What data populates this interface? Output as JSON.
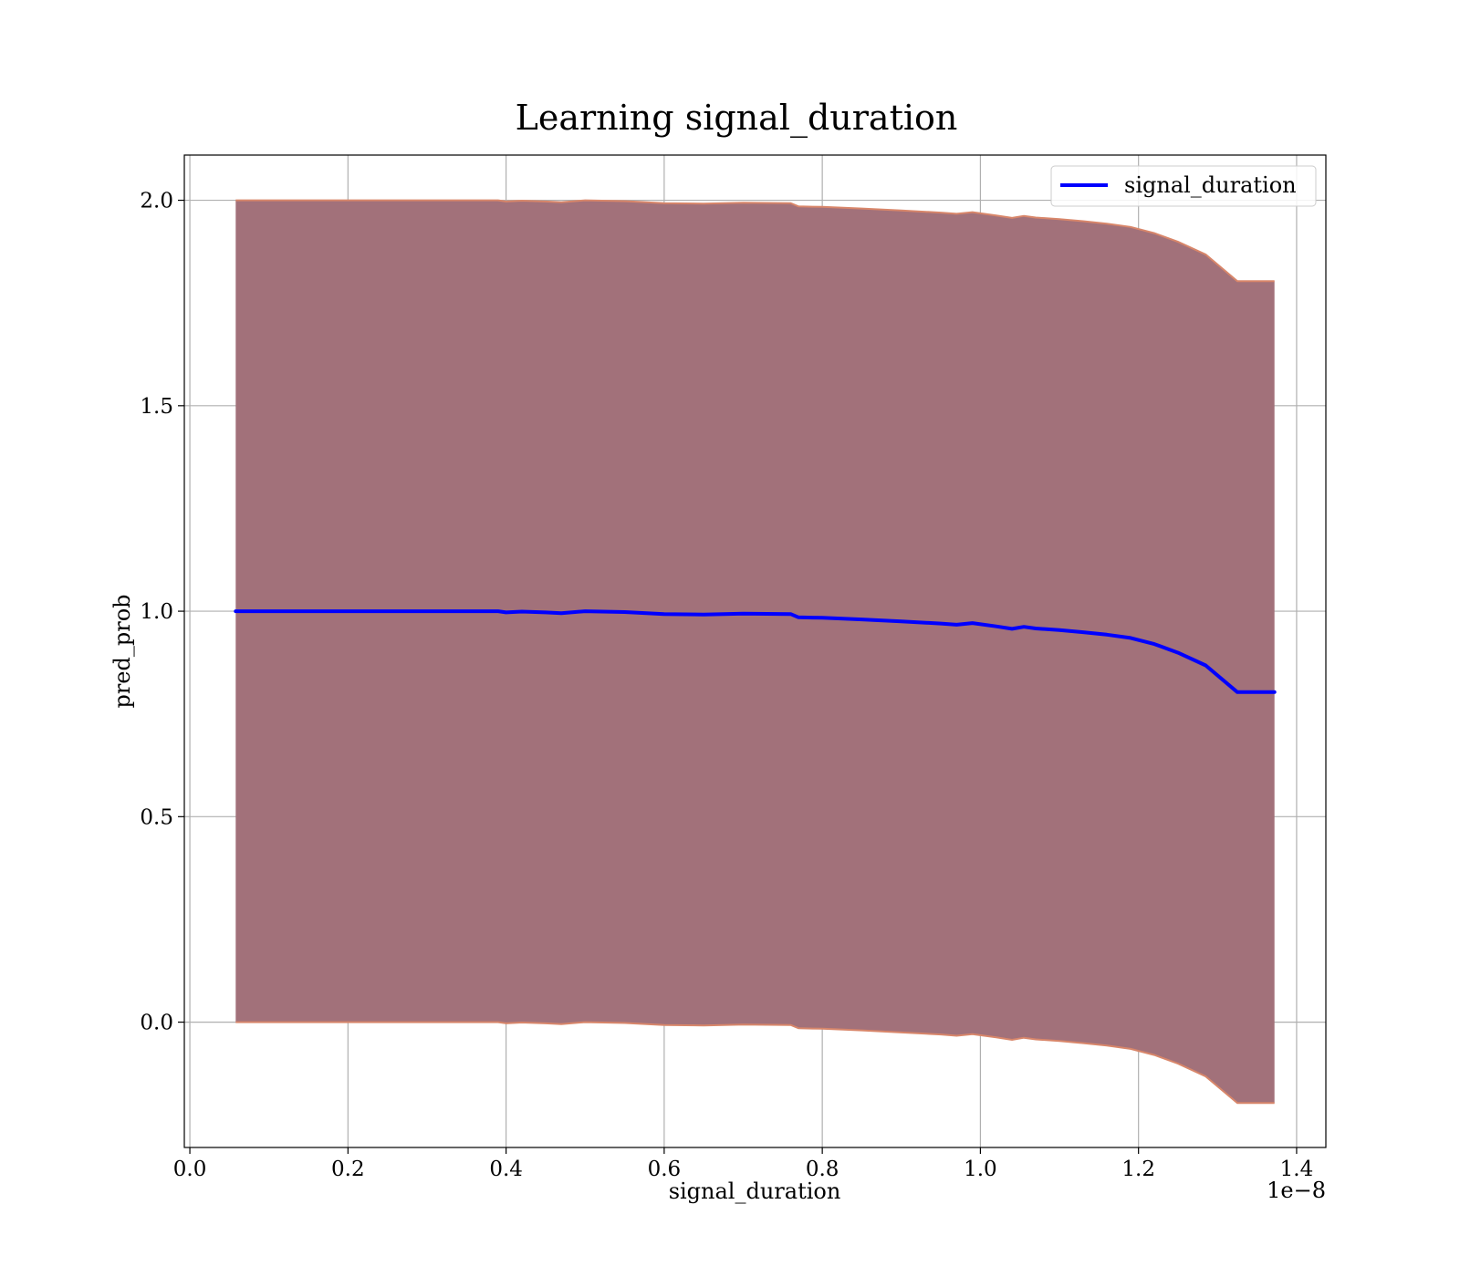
{
  "chart_data": {
    "type": "line",
    "title": "Learning signal_duration",
    "xlabel": "signal_duration",
    "ylabel": "pred_prob",
    "x_offset_label": "1e−8",
    "xlim": [
      -0.007,
      1.437
    ],
    "ylim": [
      -0.305,
      2.11
    ],
    "grid": true,
    "legend_position": "top-right",
    "x_ticks": [
      {
        "value": 0.0,
        "label": "0.0"
      },
      {
        "value": 0.2,
        "label": "0.2"
      },
      {
        "value": 0.4,
        "label": "0.4"
      },
      {
        "value": 0.6,
        "label": "0.6"
      },
      {
        "value": 0.8,
        "label": "0.8"
      },
      {
        "value": 1.0,
        "label": "1.0"
      },
      {
        "value": 1.2,
        "label": "1.2"
      },
      {
        "value": 1.4,
        "label": "1.4"
      }
    ],
    "y_ticks": [
      {
        "value": 0.0,
        "label": "0.0"
      },
      {
        "value": 0.5,
        "label": "0.5"
      },
      {
        "value": 1.0,
        "label": "1.0"
      },
      {
        "value": 1.5,
        "label": "1.5"
      },
      {
        "value": 2.0,
        "label": "2.0"
      }
    ],
    "series": [
      {
        "name": "signal_duration",
        "color": "#0000ff",
        "x": [
          0.058,
          0.1,
          0.15,
          0.2,
          0.25,
          0.3,
          0.35,
          0.39,
          0.4,
          0.42,
          0.45,
          0.47,
          0.5,
          0.55,
          0.6,
          0.65,
          0.7,
          0.76,
          0.77,
          0.8,
          0.85,
          0.9,
          0.95,
          0.97,
          0.99,
          1.02,
          1.04,
          1.055,
          1.07,
          1.1,
          1.13,
          1.16,
          1.19,
          1.22,
          1.25,
          1.285,
          1.325,
          1.372
        ],
        "y": [
          1.0,
          1.0,
          1.0,
          1.0,
          1.0,
          1.0,
          1.0,
          1.0,
          0.997,
          0.999,
          0.997,
          0.995,
          1.0,
          0.998,
          0.993,
          0.992,
          0.994,
          0.993,
          0.985,
          0.984,
          0.98,
          0.975,
          0.97,
          0.967,
          0.971,
          0.963,
          0.957,
          0.962,
          0.958,
          0.954,
          0.949,
          0.943,
          0.935,
          0.92,
          0.899,
          0.868,
          0.803,
          0.803
        ]
      }
    ],
    "band": {
      "color": "#a2717a",
      "edge_color": "#d8866a",
      "x": [
        0.058,
        0.1,
        0.15,
        0.2,
        0.25,
        0.3,
        0.35,
        0.39,
        0.4,
        0.42,
        0.45,
        0.47,
        0.5,
        0.55,
        0.6,
        0.65,
        0.7,
        0.76,
        0.77,
        0.8,
        0.85,
        0.9,
        0.95,
        0.97,
        0.99,
        1.02,
        1.04,
        1.055,
        1.07,
        1.1,
        1.13,
        1.16,
        1.19,
        1.22,
        1.25,
        1.285,
        1.325,
        1.372
      ],
      "upper": [
        2.0,
        2.0,
        2.0,
        2.0,
        2.0,
        2.0,
        2.0,
        2.0,
        1.997,
        1.999,
        1.997,
        1.995,
        2.0,
        1.998,
        1.993,
        1.992,
        1.994,
        1.993,
        1.985,
        1.984,
        1.98,
        1.975,
        1.97,
        1.967,
        1.971,
        1.963,
        1.957,
        1.962,
        1.958,
        1.954,
        1.949,
        1.943,
        1.935,
        1.92,
        1.899,
        1.868,
        1.803,
        1.803
      ],
      "lower": [
        0.0,
        0.0,
        0.0,
        0.0,
        0.0,
        0.0,
        0.0,
        0.0,
        -0.003,
        -0.001,
        -0.003,
        -0.005,
        0.0,
        -0.002,
        -0.007,
        -0.008,
        -0.006,
        -0.007,
        -0.015,
        -0.016,
        -0.02,
        -0.025,
        -0.03,
        -0.033,
        -0.029,
        -0.037,
        -0.043,
        -0.038,
        -0.042,
        -0.046,
        -0.051,
        -0.057,
        -0.065,
        -0.08,
        -0.101,
        -0.132,
        -0.197,
        -0.197
      ]
    }
  }
}
